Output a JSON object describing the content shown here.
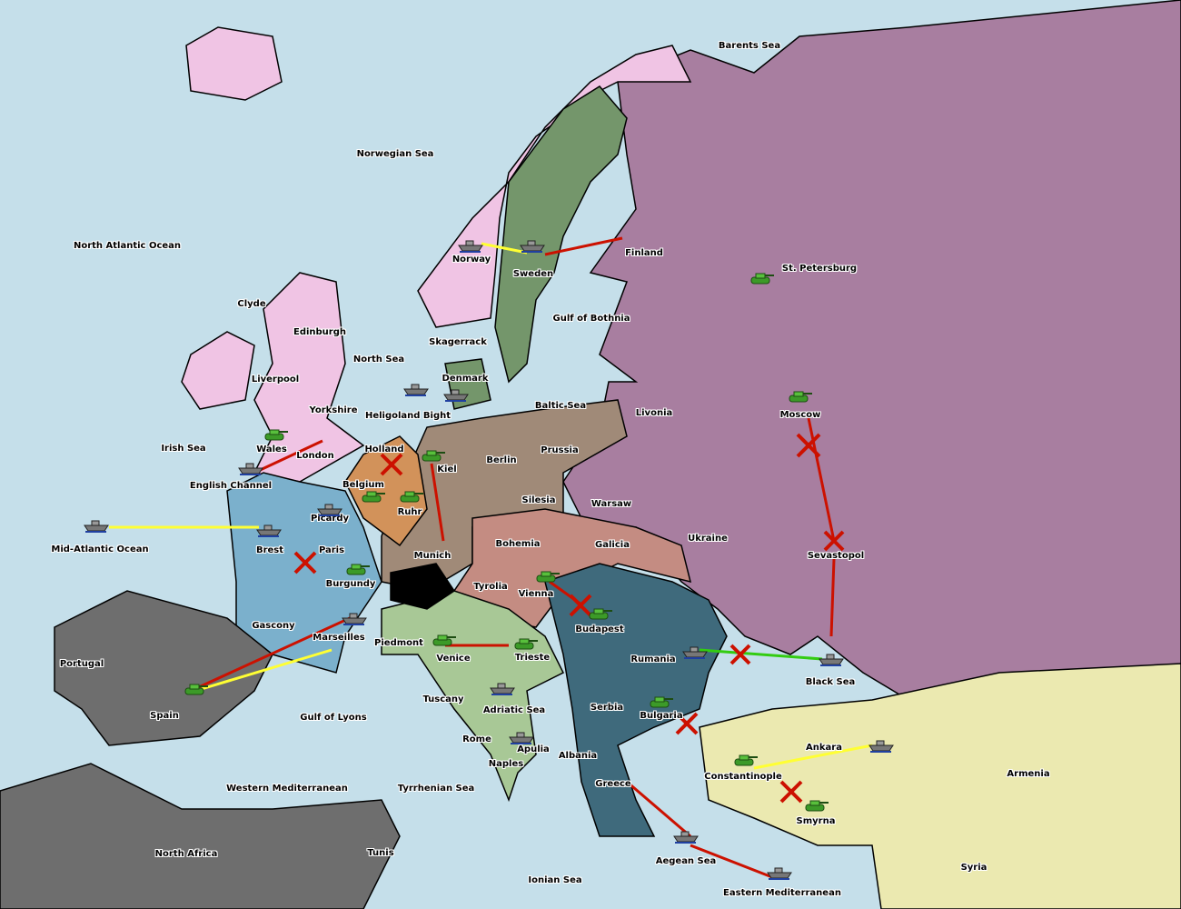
{
  "colors": {
    "sea": "#c5dfea",
    "russia": "#a87ea0",
    "turkey": "#ebe9b0",
    "england": "#f0c4e4",
    "sweden": "#74966b",
    "germany": "#a08a78",
    "france": "#7bb0cc",
    "low_countries": "#d2925a",
    "austria": "#c48c82",
    "balkans": "#3f6a7c",
    "italy": "#a8c896",
    "neutral": "#6e6e6e",
    "support_order": "#ffff33",
    "move_order": "#cc1100",
    "convoy_order": "#33cc11"
  },
  "labels": [
    "Barents Sea",
    "Norwegian Sea",
    "North Atlantic Ocean",
    "Clyde",
    "Edinburgh",
    "Liverpool",
    "Yorkshire",
    "North Sea",
    "Irish Sea",
    "Wales",
    "London",
    "English Channel",
    "Mid-Atlantic Ocean",
    "Brest",
    "Picardy",
    "Paris",
    "Burgundy",
    "Gascony",
    "Marseilles",
    "Portugal",
    "Spain",
    "Gulf of Lyons",
    "Western Mediterranean",
    "North Africa",
    "Tunis",
    "Tyrrhenian Sea",
    "Ionian Sea",
    "Naples",
    "Rome",
    "Apulia",
    "Tuscany",
    "Venice",
    "Piedmont",
    "Trieste",
    "Adriatic Sea",
    "Albania",
    "Greece",
    "Aegean Sea",
    "Eastern Mediterranean",
    "Smyrna",
    "Constantinople",
    "Ankara",
    "Armenia",
    "Syria",
    "Black Sea",
    "Bulgaria",
    "Serbia",
    "Rumania",
    "Budapest",
    "Vienna",
    "Tyrolia",
    "Bohemia",
    "Galicia",
    "Munich",
    "Ruhr",
    "Belgium",
    "Holland",
    "Kiel",
    "Berlin",
    "Prussia",
    "Silesia",
    "Warsaw",
    "Ukraine",
    "Sevastopol",
    "Moscow",
    "Livonia",
    "St. Petersburg",
    "Finland",
    "Sweden",
    "Norway",
    "Gulf of Bothnia",
    "Skagerrack",
    "Denmark",
    "Heligoland Bight",
    "Baltic Sea"
  ]
}
